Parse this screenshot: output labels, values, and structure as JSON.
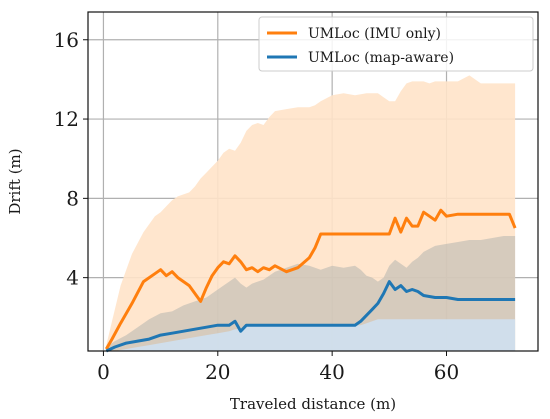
{
  "chart_data": {
    "type": "line",
    "xlabel": "Traveled distance (m)",
    "ylabel": "Drift (m)",
    "xlim": [
      -2.7,
      76
    ],
    "ylim": [
      0.3,
      17.4
    ],
    "xticks": [
      0,
      20,
      40,
      60
    ],
    "yticks": [
      4,
      8,
      12,
      16
    ],
    "grid": true,
    "legend_placement": "top-right",
    "series": [
      {
        "name": "UMLoc (IMU only)",
        "color": "#ff7f0e",
        "band_color": "#ffe3c9",
        "x": [
          0.5,
          1.5,
          3,
          5,
          7,
          9,
          10,
          11,
          12,
          13,
          14,
          15,
          16,
          17,
          18,
          19,
          20,
          21,
          22,
          23,
          24,
          25,
          26,
          27,
          28,
          29,
          30,
          32,
          34,
          36,
          37,
          38,
          40,
          42,
          44,
          46,
          48,
          50,
          51,
          52,
          53,
          54,
          55,
          56,
          57,
          58,
          59,
          60,
          62,
          64,
          66,
          68,
          70,
          71,
          72
        ],
        "values": [
          0.4,
          0.9,
          1.7,
          2.7,
          3.8,
          4.2,
          4.4,
          4.1,
          4.3,
          4.0,
          3.8,
          3.6,
          3.2,
          2.8,
          3.5,
          4.1,
          4.5,
          4.8,
          4.7,
          5.1,
          4.8,
          4.4,
          4.5,
          4.3,
          4.5,
          4.4,
          4.6,
          4.3,
          4.5,
          5.0,
          5.5,
          6.2,
          6.2,
          6.2,
          6.2,
          6.2,
          6.2,
          6.2,
          7.0,
          6.3,
          7.0,
          6.6,
          6.6,
          7.3,
          7.1,
          6.9,
          7.4,
          7.1,
          7.2,
          7.2,
          7.2,
          7.2,
          7.2,
          7.2,
          6.5
        ],
        "band_upper": [
          0.6,
          1.8,
          3.6,
          5.2,
          6.3,
          7.1,
          7.3,
          7.6,
          7.9,
          8.1,
          8.2,
          8.3,
          8.6,
          9.0,
          9.3,
          9.6,
          9.9,
          10.3,
          10.5,
          10.4,
          10.8,
          11.4,
          11.7,
          11.8,
          11.7,
          12.1,
          12.4,
          12.5,
          12.6,
          12.6,
          12.7,
          12.9,
          13.2,
          13.3,
          13.2,
          13.3,
          13.3,
          12.9,
          12.9,
          13.4,
          13.8,
          13.9,
          13.9,
          13.9,
          13.8,
          13.9,
          13.9,
          13.9,
          13.9,
          14.2,
          13.8,
          13.8,
          13.8,
          13.8,
          13.8
        ],
        "band_lower": [
          0.3,
          0.3,
          0.3,
          0.3,
          0.3,
          0.3,
          0.3,
          0.3,
          0.3,
          0.3,
          0.3,
          0.3,
          0.3,
          0.3,
          0.3,
          0.3,
          0.3,
          0.3,
          0.3,
          0.3,
          0.3,
          0.3,
          0.3,
          0.3,
          0.3,
          0.3,
          0.3,
          0.3,
          0.3,
          0.3,
          0.3,
          0.3,
          0.3,
          0.3,
          0.3,
          0.3,
          0.3,
          0.3,
          0.3,
          0.3,
          0.3,
          0.3,
          0.3,
          0.3,
          0.3,
          0.3,
          0.3,
          0.3,
          0.3,
          0.3,
          0.3,
          0.3,
          0.3,
          0.3,
          0.3
        ]
      },
      {
        "name": "UMLoc (map-aware)",
        "color": "#1f77b4",
        "band_color": "#cfe0ef",
        "x": [
          0.5,
          2,
          4,
          6,
          8,
          10,
          12,
          14,
          16,
          18,
          20,
          22,
          23,
          24,
          25,
          26,
          28,
          30,
          32,
          34,
          36,
          38,
          40,
          42,
          44,
          45,
          46,
          47,
          48,
          49,
          50,
          51,
          52,
          53,
          54,
          55,
          56,
          58,
          60,
          62,
          64,
          66,
          68,
          70,
          72
        ],
        "values": [
          0.3,
          0.5,
          0.7,
          0.8,
          0.9,
          1.1,
          1.2,
          1.3,
          1.4,
          1.5,
          1.6,
          1.6,
          1.8,
          1.3,
          1.6,
          1.6,
          1.6,
          1.6,
          1.6,
          1.6,
          1.6,
          1.6,
          1.6,
          1.6,
          1.6,
          1.8,
          2.1,
          2.4,
          2.7,
          3.2,
          3.8,
          3.4,
          3.6,
          3.3,
          3.4,
          3.3,
          3.1,
          3.0,
          3.0,
          2.9,
          2.9,
          2.9,
          2.9,
          2.9,
          2.9
        ],
        "band_upper": [
          0.5,
          0.8,
          1.1,
          1.5,
          1.9,
          2.2,
          2.3,
          2.6,
          2.8,
          3.0,
          3.4,
          3.8,
          4.0,
          3.7,
          3.5,
          3.7,
          3.9,
          4.3,
          4.5,
          4.7,
          4.6,
          4.4,
          4.6,
          4.5,
          4.6,
          4.4,
          4.1,
          4.0,
          3.8,
          4.0,
          4.6,
          4.9,
          4.7,
          4.5,
          4.8,
          5.0,
          5.3,
          5.6,
          5.7,
          5.8,
          5.9,
          5.9,
          6.0,
          6.1,
          6.1
        ],
        "band_lower": [
          0.3,
          0.3,
          0.3,
          0.3,
          0.3,
          0.3,
          0.3,
          0.3,
          0.3,
          0.3,
          0.3,
          0.3,
          0.3,
          0.3,
          0.3,
          0.3,
          0.3,
          0.3,
          0.3,
          0.3,
          0.3,
          0.3,
          0.3,
          0.3,
          0.3,
          0.3,
          0.3,
          0.3,
          0.3,
          0.3,
          0.3,
          0.3,
          0.3,
          0.3,
          0.3,
          0.3,
          0.3,
          0.3,
          0.3,
          0.3,
          0.3,
          0.3,
          0.3,
          0.3,
          0.3
        ],
        "inner_band_upper": [
          0.3,
          0.3,
          0.4,
          0.5,
          0.6,
          0.7,
          0.8,
          0.9,
          1.0,
          1.1,
          1.2,
          1.3,
          1.4,
          1.4,
          1.6,
          1.6,
          1.6,
          1.6,
          1.6,
          1.6,
          1.6,
          1.6,
          1.6,
          1.6,
          1.6,
          1.6,
          1.7,
          1.8,
          1.9,
          1.9,
          1.9,
          1.9,
          1.9,
          1.9,
          1.9,
          1.9,
          1.9,
          1.9,
          1.9,
          1.9,
          1.9,
          1.9,
          1.9,
          1.9,
          1.9
        ]
      }
    ]
  }
}
